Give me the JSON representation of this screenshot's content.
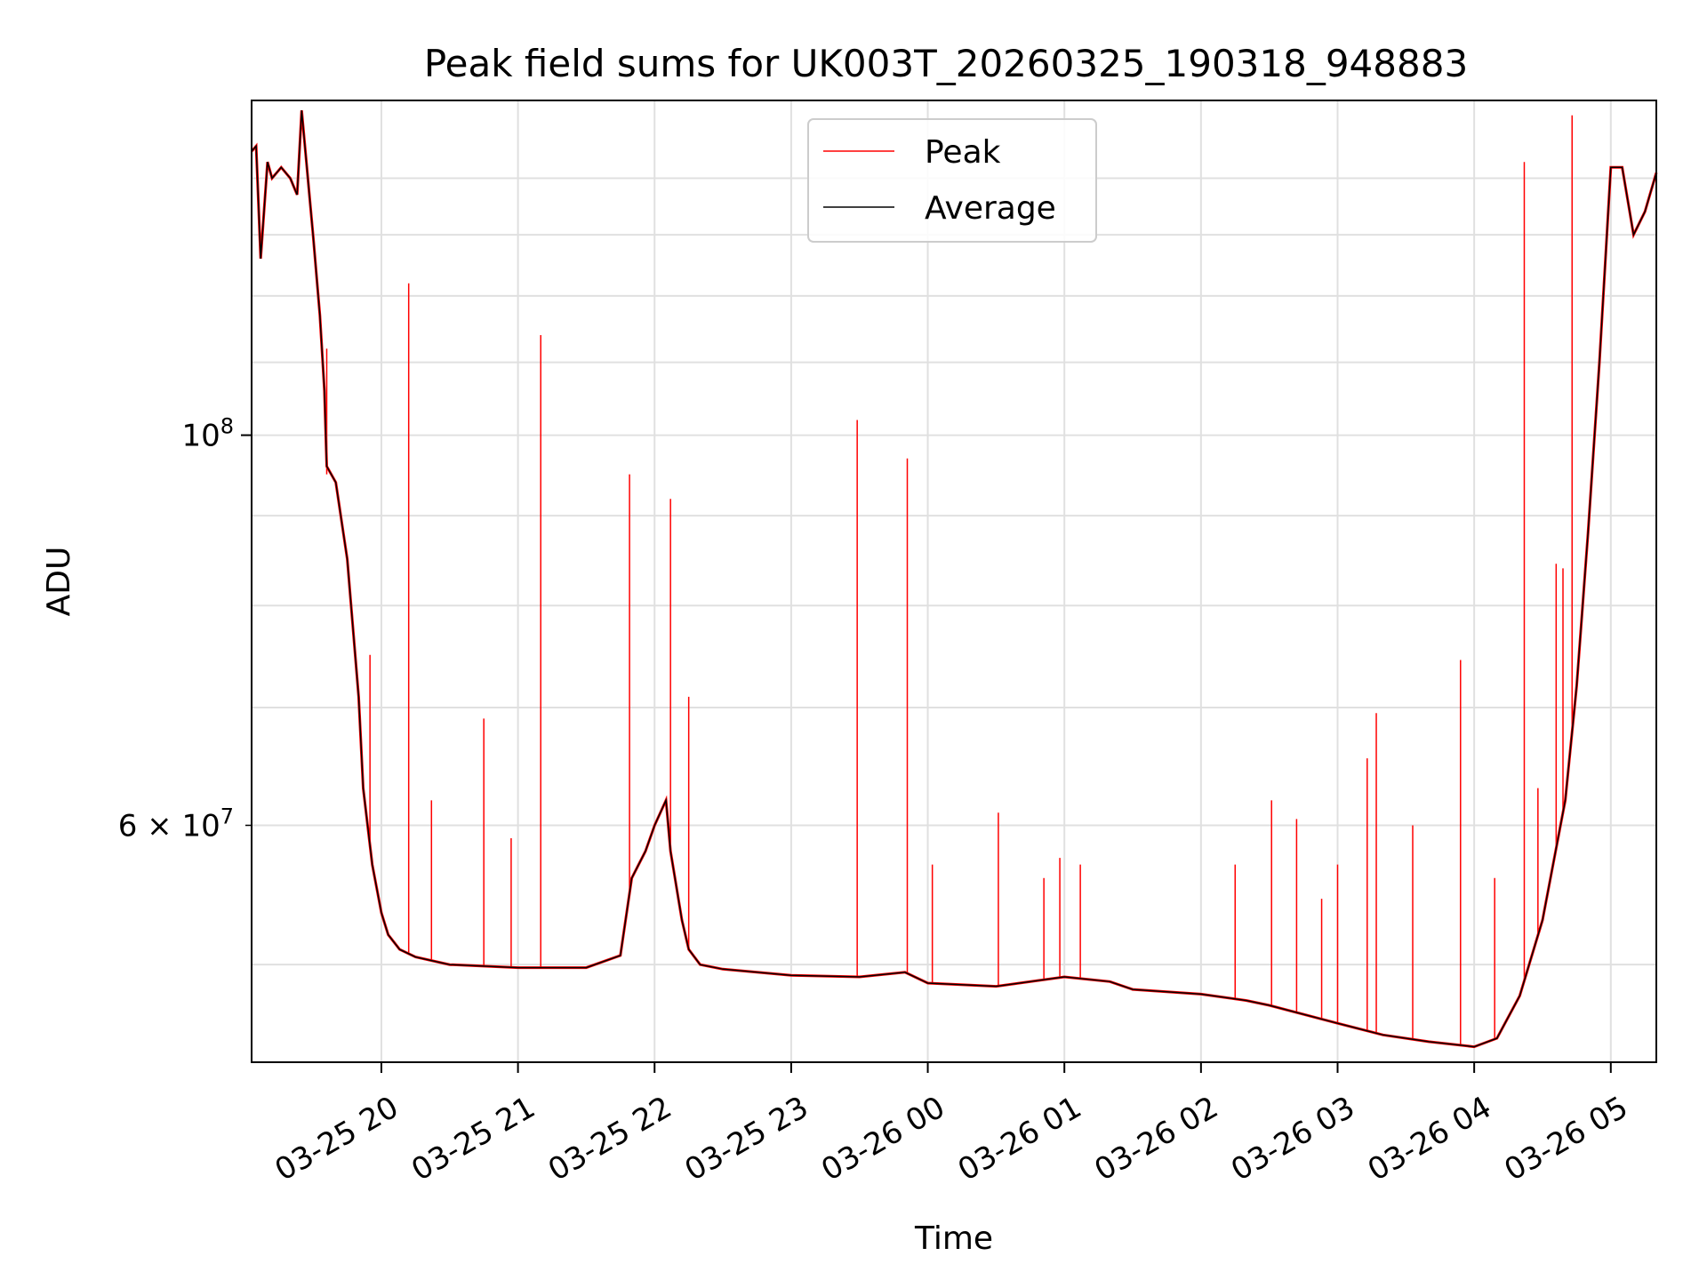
{
  "chart_data": {
    "type": "line",
    "title": "Peak field sums for UK003T_20260325_190318_948883",
    "xlabel": "Time",
    "ylabel": "ADU",
    "yscale": "log",
    "ylim": [
      44000000,
      155000000
    ],
    "xlim": [
      "2026-03-25 19:03",
      "2026-03-26 05:20"
    ],
    "grid": true,
    "legend": "upper center",
    "colors": {
      "Peak": "#ff0000",
      "Average": "#000000"
    },
    "x_ticks": [
      {
        "t": "2026-03-25 20:00",
        "label": "03-25 20"
      },
      {
        "t": "2026-03-25 21:00",
        "label": "03-25 21"
      },
      {
        "t": "2026-03-25 22:00",
        "label": "03-25 22"
      },
      {
        "t": "2026-03-25 23:00",
        "label": "03-25 23"
      },
      {
        "t": "2026-03-26 00:00",
        "label": "03-26 00"
      },
      {
        "t": "2026-03-26 01:00",
        "label": "03-26 01"
      },
      {
        "t": "2026-03-26 02:00",
        "label": "03-26 02"
      },
      {
        "t": "2026-03-26 03:00",
        "label": "03-26 03"
      },
      {
        "t": "2026-03-26 04:00",
        "label": "03-26 04"
      },
      {
        "t": "2026-03-26 05:00",
        "label": "03-26 05"
      }
    ],
    "y_ticks_major": [
      {
        "value": 100000000,
        "base": "10",
        "exp": "8"
      }
    ],
    "y_ticks_minor": [
      {
        "value": 60000000,
        "mantissa": "6",
        "base": "10",
        "exp": "7"
      }
    ],
    "y_grid_values": [
      50000000,
      60000000,
      70000000,
      80000000,
      90000000,
      100000000,
      110000000,
      120000000,
      130000000,
      140000000
    ],
    "series": [
      {
        "name": "Average",
        "x": [
          "2026-03-25 19:03",
          "2026-03-25 19:05",
          "2026-03-25 19:07",
          "2026-03-25 19:10",
          "2026-03-25 19:12",
          "2026-03-25 19:16",
          "2026-03-25 19:20",
          "2026-03-25 19:23",
          "2026-03-25 19:25",
          "2026-03-25 19:30",
          "2026-03-25 19:33",
          "2026-03-25 19:35",
          "2026-03-25 19:36",
          "2026-03-25 19:40",
          "2026-03-25 19:45",
          "2026-03-25 19:50",
          "2026-03-25 19:52",
          "2026-03-25 19:56",
          "2026-03-25 20:00",
          "2026-03-25 20:03",
          "2026-03-25 20:08",
          "2026-03-25 20:15",
          "2026-03-25 20:30",
          "2026-03-25 21:00",
          "2026-03-25 21:30",
          "2026-03-25 21:45",
          "2026-03-25 21:50",
          "2026-03-25 21:56",
          "2026-03-25 22:00",
          "2026-03-25 22:05",
          "2026-03-25 22:07",
          "2026-03-25 22:12",
          "2026-03-25 22:15",
          "2026-03-25 22:20",
          "2026-03-25 22:30",
          "2026-03-25 23:00",
          "2026-03-25 23:30",
          "2026-03-25 23:50",
          "2026-03-26 00:00",
          "2026-03-26 00:30",
          "2026-03-26 01:00",
          "2026-03-26 01:20",
          "2026-03-26 01:30",
          "2026-03-26 02:00",
          "2026-03-26 02:20",
          "2026-03-26 02:30",
          "2026-03-26 03:00",
          "2026-03-26 03:20",
          "2026-03-26 03:40",
          "2026-03-26 04:00",
          "2026-03-26 04:10",
          "2026-03-26 04:20",
          "2026-03-26 04:30",
          "2026-03-26 04:40",
          "2026-03-26 04:45",
          "2026-03-26 04:50",
          "2026-03-26 04:55",
          "2026-03-26 05:00",
          "2026-03-26 05:05",
          "2026-03-26 05:10",
          "2026-03-26 05:15",
          "2026-03-26 05:20"
        ],
        "y": [
          145000000,
          146000000,
          126000000,
          143000000,
          140000000,
          142000000,
          140000000,
          137000000,
          153000000,
          130000000,
          117000000,
          106000000,
          96000000,
          94000000,
          85000000,
          71000000,
          63000000,
          57000000,
          53500000,
          52000000,
          51000000,
          50500000,
          50000000,
          49800000,
          49800000,
          50600000,
          56000000,
          58000000,
          60000000,
          62000000,
          58000000,
          53000000,
          51000000,
          50000000,
          49700000,
          49300000,
          49200000,
          49500000,
          48800000,
          48600000,
          49200000,
          48900000,
          48400000,
          48100000,
          47700000,
          47400000,
          46300000,
          45600000,
          45200000,
          44900000,
          45400000,
          48000000,
          53000000,
          62000000,
          72000000,
          88000000,
          110000000,
          142000000,
          142000000,
          130000000,
          134000000,
          141000000
        ]
      },
      {
        "name": "Peak",
        "spikes": [
          {
            "t": "2026-03-25 19:36",
            "y": 112000000
          },
          {
            "t": "2026-03-25 19:36",
            "y": 95000000
          },
          {
            "t": "2026-03-25 19:50",
            "y": 70000000
          },
          {
            "t": "2026-03-25 19:55",
            "y": 75000000
          },
          {
            "t": "2026-03-25 20:12",
            "y": 122000000
          },
          {
            "t": "2026-03-25 20:22",
            "y": 62000000
          },
          {
            "t": "2026-03-25 20:45",
            "y": 69000000
          },
          {
            "t": "2026-03-25 20:57",
            "y": 59000000
          },
          {
            "t": "2026-03-25 21:10",
            "y": 114000000
          },
          {
            "t": "2026-03-25 21:49",
            "y": 95000000
          },
          {
            "t": "2026-03-25 22:07",
            "y": 92000000
          },
          {
            "t": "2026-03-25 22:15",
            "y": 71000000
          },
          {
            "t": "2026-03-25 23:29",
            "y": 102000000
          },
          {
            "t": "2026-03-25 23:51",
            "y": 97000000
          },
          {
            "t": "2026-03-26 00:02",
            "y": 57000000
          },
          {
            "t": "2026-03-26 00:31",
            "y": 61000000
          },
          {
            "t": "2026-03-26 00:51",
            "y": 56000000
          },
          {
            "t": "2026-03-26 00:58",
            "y": 57500000
          },
          {
            "t": "2026-03-26 01:07",
            "y": 57000000
          },
          {
            "t": "2026-03-26 02:15",
            "y": 57000000
          },
          {
            "t": "2026-03-26 02:31",
            "y": 62000000
          },
          {
            "t": "2026-03-26 02:42",
            "y": 60500000
          },
          {
            "t": "2026-03-26 02:53",
            "y": 54500000
          },
          {
            "t": "2026-03-26 03:00",
            "y": 57000000
          },
          {
            "t": "2026-03-26 03:13",
            "y": 65500000
          },
          {
            "t": "2026-03-26 03:17",
            "y": 69500000
          },
          {
            "t": "2026-03-26 03:33",
            "y": 60000000
          },
          {
            "t": "2026-03-26 03:54",
            "y": 74500000
          },
          {
            "t": "2026-03-26 04:09",
            "y": 56000000
          },
          {
            "t": "2026-03-26 04:22",
            "y": 143000000
          },
          {
            "t": "2026-03-26 04:28",
            "y": 63000000
          },
          {
            "t": "2026-03-26 04:36",
            "y": 84500000
          },
          {
            "t": "2026-03-26 04:39",
            "y": 84000000
          },
          {
            "t": "2026-03-26 04:43",
            "y": 152000000
          }
        ]
      }
    ]
  }
}
